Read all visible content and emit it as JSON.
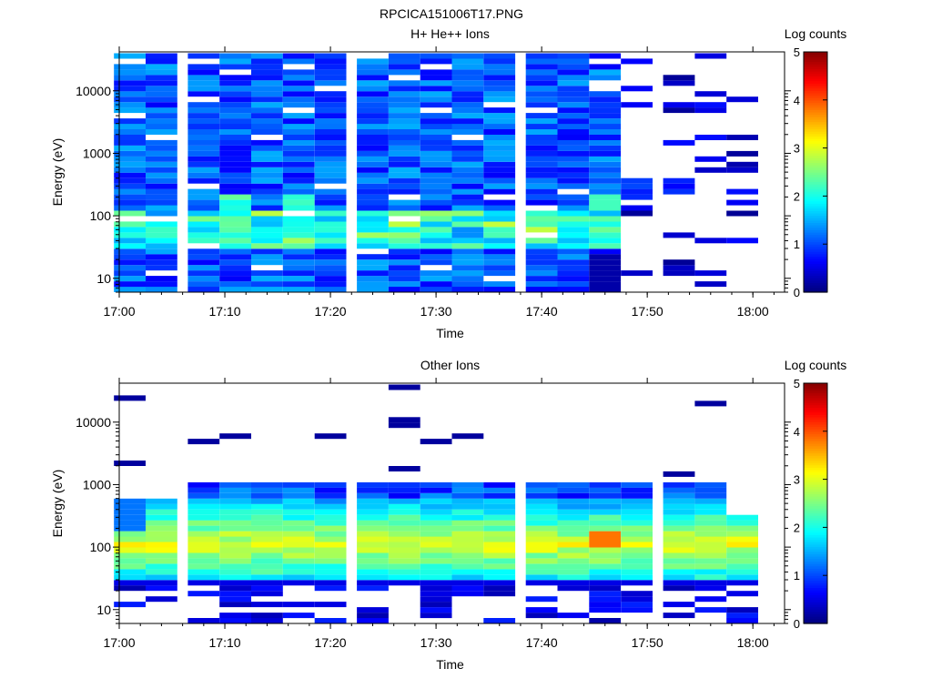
{
  "figure_title": "RPCICA151006T17.PNG",
  "colorbar_ticks": [
    "0",
    "1",
    "2",
    "3",
    "4",
    "5"
  ],
  "colorbar_label": "Log counts",
  "chart_data": [
    {
      "type": "heatmap",
      "title": "H+ He++ Ions",
      "xlabel": "Time",
      "ylabel": "Energy (eV)",
      "x_ticks": [
        "17:00",
        "17:10",
        "17:20",
        "17:30",
        "17:40",
        "17:50",
        "18:00"
      ],
      "y_ticks": [
        "10",
        "100",
        "1000",
        "10000"
      ],
      "y_scale": "log",
      "ylim": [
        6,
        42000
      ],
      "xlim": [
        "17:00",
        "18:03"
      ],
      "colorbar": {
        "label": "Log counts",
        "range": [
          0,
          5
        ],
        "colormap": "jet"
      },
      "time_bins": [
        "17:01",
        "17:04",
        "17:08",
        "17:11",
        "17:14",
        "17:17",
        "17:20",
        "17:24",
        "17:27",
        "17:30",
        "17:33",
        "17:36",
        "17:40",
        "17:43",
        "17:46",
        "17:49",
        "17:53",
        "17:56",
        "17:59"
      ],
      "description_levels": {
        "above_1000_eV": "sparse bins with log counts 0-1 (dark blue) before 17:46, single streaks after 17:49",
        "100_to_1000_eV": "mostly 0.5-1.5",
        "below_100_eV": "peaks near 2.0-2.5 around 60-80 eV at 17:14-17:24 and 17:46"
      }
    },
    {
      "type": "heatmap",
      "title": "Other Ions",
      "xlabel": "Time",
      "ylabel": "Energy (eV)",
      "x_ticks": [
        "17:00",
        "17:10",
        "17:20",
        "17:30",
        "17:40",
        "17:50",
        "18:00"
      ],
      "y_ticks": [
        "10",
        "100",
        "1000",
        "10000"
      ],
      "y_scale": "log",
      "ylim": [
        6,
        42000
      ],
      "xlim": [
        "17:00",
        "18:03"
      ],
      "colorbar": {
        "label": "Log counts",
        "range": [
          0,
          5
        ],
        "colormap": "jet"
      },
      "time_bins": [
        "17:01",
        "17:04",
        "17:08",
        "17:11",
        "17:14",
        "17:17",
        "17:20",
        "17:24",
        "17:27",
        "17:30",
        "17:33",
        "17:36",
        "17:40",
        "17:43",
        "17:46",
        "17:49",
        "17:53",
        "17:56",
        "17:59"
      ],
      "description_levels": {
        "25_to_500_eV": "main band log counts 2-3.5, peak ~3.8 near 130 eV at 17:47",
        "500_to_1000_eV": "around 1-1.5",
        "above_1000_eV": "isolated dark-blue streaks"
      }
    }
  ]
}
